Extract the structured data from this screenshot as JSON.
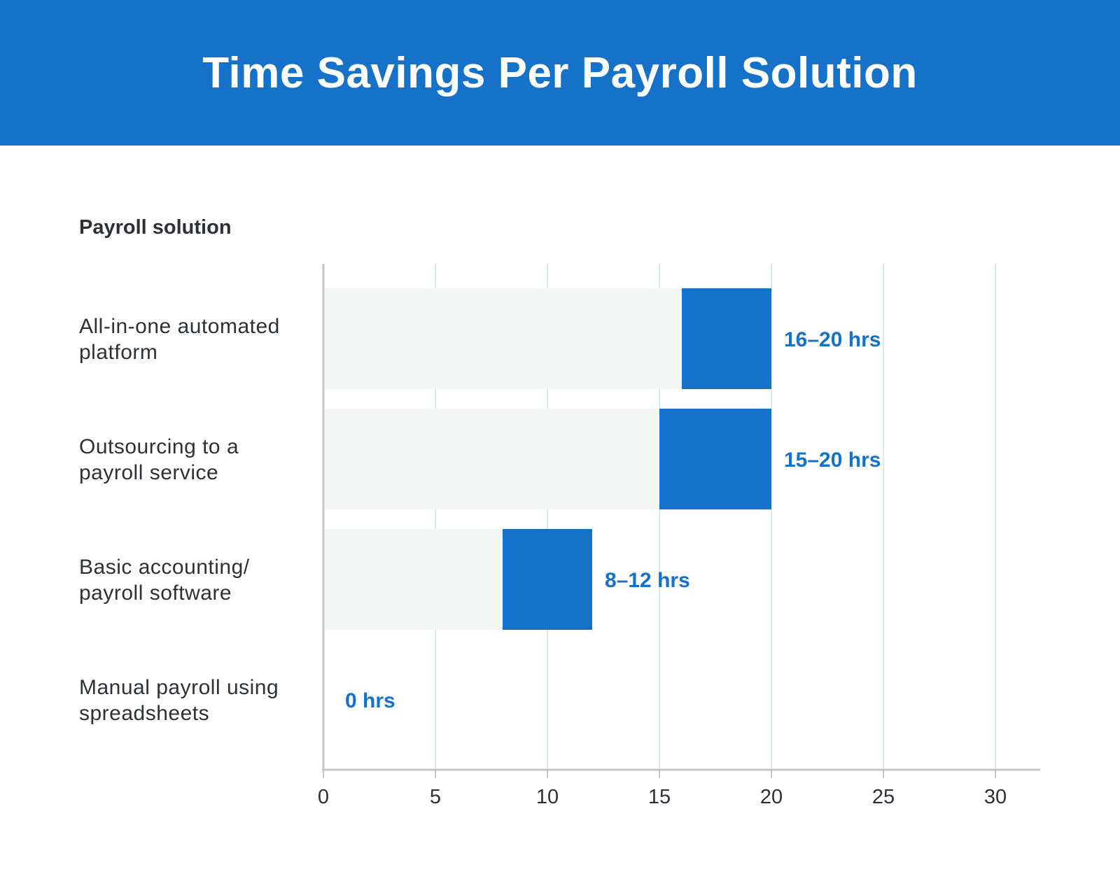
{
  "chart_data": {
    "type": "bar",
    "orientation": "horizontal",
    "stacked_range": true,
    "title": "Time Savings Per Payroll Solution",
    "ylabel": "Payroll solution",
    "xlabel": "",
    "xlim": [
      0,
      32
    ],
    "xticks": [
      0,
      5,
      10,
      15,
      20,
      25,
      30
    ],
    "grid": true,
    "categories": [
      [
        "All-in-one automated",
        "platform"
      ],
      [
        "Outsourcing to a",
        "payroll service"
      ],
      [
        "Basic accounting/",
        "payroll software"
      ],
      [
        "Manual payroll using",
        "spreadsheets"
      ]
    ],
    "ranges": [
      [
        16,
        20
      ],
      [
        15,
        20
      ],
      [
        8,
        12
      ],
      [
        0,
        0
      ]
    ],
    "data_labels": [
      "16–20 hrs",
      "15–20 hrs",
      "8–12 hrs",
      "0 hrs"
    ],
    "colors": {
      "bar": "#1672C8",
      "background_bar": "#F3F6F5",
      "header": "#1672C8",
      "label": "#1672C8",
      "grid": "#DCEBE7",
      "axis": "#C4C5C9",
      "text": "#2D3136"
    }
  }
}
